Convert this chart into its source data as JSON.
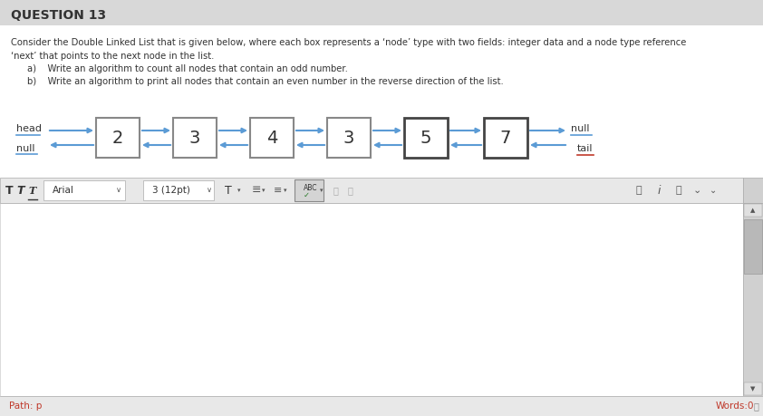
{
  "title": "QUESTION 13",
  "bg_outer": "#c8c8c8",
  "bg_main": "#f5f5f5",
  "content_bg": "#ffffff",
  "question_text_line1": "Consider the Double Linked List that is given below, where each box represents a ‘node’ type with two fields: integer data and a node type reference",
  "question_text_line2": "‘next’ that points to the next node in the list.",
  "sub_a": "a)    Write an algorithm to count all nodes that contain an odd number.",
  "sub_b": "b)    Write an algorithm to print all nodes that contain an even number in the reverse direction of the list.",
  "nodes": [
    2,
    3,
    4,
    3,
    5,
    7
  ],
  "arrow_color": "#5b9bd5",
  "node_border_color_light": "#888888",
  "node_border_color_dark": "#444444",
  "text_color_dark": "#333333",
  "text_color_red": "#c0392b",
  "toolbar_bg": "#e8e8e8",
  "editor_bg": "#ffffff",
  "scrollbar_bg": "#d0d0d0",
  "scrollbar_thumb": "#a0a0a0",
  "statusbar_bg": "#e8e8e8",
  "head_label": "head",
  "null_left_label": "null",
  "null_right_label": "null",
  "tail_label": "tail",
  "path_text": "Path: p",
  "words_text": "Words:0"
}
